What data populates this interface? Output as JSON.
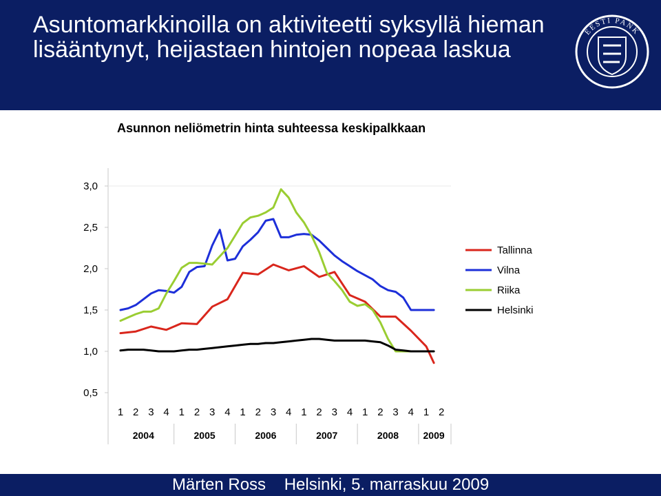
{
  "header": {
    "title": "Asuntomarkkinoilla on aktiviteetti syksyllä hieman lisääntynyt, heijastaen hintojen nopeaa laskua",
    "background": "#0b1e63",
    "logo_text": "EESTI PANK"
  },
  "footer": {
    "text": "Märten Ross    Helsinki, 5. marraskuu 2009",
    "background": "#0b1e63"
  },
  "chart_data": {
    "type": "line",
    "title": "Asunnon neliömetrin hinta  suhteessa keskipalkkaan",
    "ylim": [
      0.5,
      3.0
    ],
    "yticks": [
      "3,0",
      "2,5",
      "2,0",
      "1,5",
      "1,0",
      "0,5"
    ],
    "ytick_values": [
      3.0,
      2.5,
      2.0,
      1.5,
      1.0,
      0.5
    ],
    "quarter_labels": [
      "1",
      "2",
      "3",
      "4",
      "1",
      "2",
      "3",
      "4",
      "1",
      "2",
      "3",
      "4",
      "1",
      "2",
      "3",
      "4",
      "1",
      "2",
      "3",
      "4",
      "1",
      "2"
    ],
    "year_labels": [
      "2004",
      "2005",
      "2006",
      "2007",
      "2008",
      "2009"
    ],
    "year_quarter_counts": [
      4,
      4,
      4,
      4,
      4,
      2
    ],
    "legend_position": "right",
    "grid": false,
    "series": [
      {
        "name": "Tallinna",
        "color": "#d9261c",
        "x": [
          0,
          1,
          2,
          3,
          4,
          5,
          6,
          7,
          8,
          9,
          10,
          11,
          12,
          13,
          14,
          15,
          16,
          17,
          18,
          19,
          20,
          20.5
        ],
        "values": [
          1.22,
          1.24,
          1.3,
          1.26,
          1.34,
          1.33,
          1.54,
          1.63,
          1.95,
          1.93,
          2.05,
          1.98,
          2.03,
          1.9,
          1.96,
          1.68,
          1.6,
          1.42,
          1.42,
          1.25,
          1.06,
          0.86
        ]
      },
      {
        "name": "Vilna",
        "color": "#1d2fd9",
        "x": [
          0,
          0.5,
          1,
          1.5,
          2,
          2.5,
          3,
          3.5,
          4,
          4.5,
          5,
          5.5,
          6,
          6.5,
          7,
          7.5,
          8,
          8.5,
          9,
          9.5,
          10,
          10.5,
          11,
          11.5,
          12,
          12.5,
          13,
          13.5,
          14,
          14.5,
          15,
          15.5,
          16,
          16.5,
          17,
          17.5,
          18,
          18.5,
          19,
          19.5,
          20,
          20.5
        ],
        "values": [
          1.5,
          1.52,
          1.56,
          1.63,
          1.7,
          1.74,
          1.73,
          1.71,
          1.78,
          1.96,
          2.02,
          2.03,
          2.28,
          2.47,
          2.1,
          2.12,
          2.27,
          2.35,
          2.44,
          2.58,
          2.6,
          2.38,
          2.38,
          2.41,
          2.42,
          2.41,
          2.34,
          2.25,
          2.16,
          2.09,
          2.03,
          1.97,
          1.92,
          1.87,
          1.79,
          1.74,
          1.72,
          1.65,
          1.5,
          1.5,
          1.5,
          1.5
        ]
      },
      {
        "name": "Riika",
        "color": "#9acd32",
        "x": [
          0,
          0.5,
          1,
          1.5,
          2,
          2.5,
          3,
          3.5,
          4,
          4.5,
          5,
          5.5,
          6,
          6.5,
          7,
          7.5,
          8,
          8.5,
          9,
          9.5,
          10,
          10.5,
          11,
          11.5,
          12,
          12.5,
          13,
          13.5,
          14,
          14.5,
          15,
          15.5,
          16,
          16.5,
          17,
          17.5,
          18,
          18.5,
          19,
          19.5,
          20
        ],
        "values": [
          1.37,
          1.41,
          1.45,
          1.48,
          1.48,
          1.52,
          1.7,
          1.85,
          2.01,
          2.07,
          2.07,
          2.06,
          2.05,
          2.15,
          2.25,
          2.4,
          2.55,
          2.62,
          2.64,
          2.68,
          2.74,
          2.96,
          2.86,
          2.68,
          2.56,
          2.4,
          2.2,
          1.95,
          1.85,
          1.74,
          1.6,
          1.55,
          1.57,
          1.5,
          1.35,
          1.15,
          1.0,
          1.0,
          1.0,
          1.0,
          1.0
        ]
      },
      {
        "name": "Helsinki",
        "color": "#000000",
        "x": [
          0,
          0.5,
          1,
          1.5,
          2,
          2.5,
          3,
          3.5,
          4,
          4.5,
          5,
          5.5,
          6,
          6.5,
          7,
          7.5,
          8,
          8.5,
          9,
          9.5,
          10,
          10.5,
          11,
          11.5,
          12,
          12.5,
          13,
          13.5,
          14,
          14.5,
          15,
          15.5,
          16,
          16.5,
          17,
          17.5,
          18,
          18.5,
          19,
          19.5,
          20,
          20.5
        ],
        "values": [
          1.01,
          1.02,
          1.02,
          1.02,
          1.01,
          1.0,
          1.0,
          1.0,
          1.01,
          1.02,
          1.02,
          1.03,
          1.04,
          1.05,
          1.06,
          1.07,
          1.08,
          1.09,
          1.09,
          1.1,
          1.1,
          1.11,
          1.12,
          1.13,
          1.14,
          1.15,
          1.15,
          1.14,
          1.13,
          1.13,
          1.13,
          1.13,
          1.13,
          1.12,
          1.11,
          1.07,
          1.02,
          1.01,
          1.0,
          1.0,
          1.0,
          1.0
        ]
      }
    ]
  }
}
